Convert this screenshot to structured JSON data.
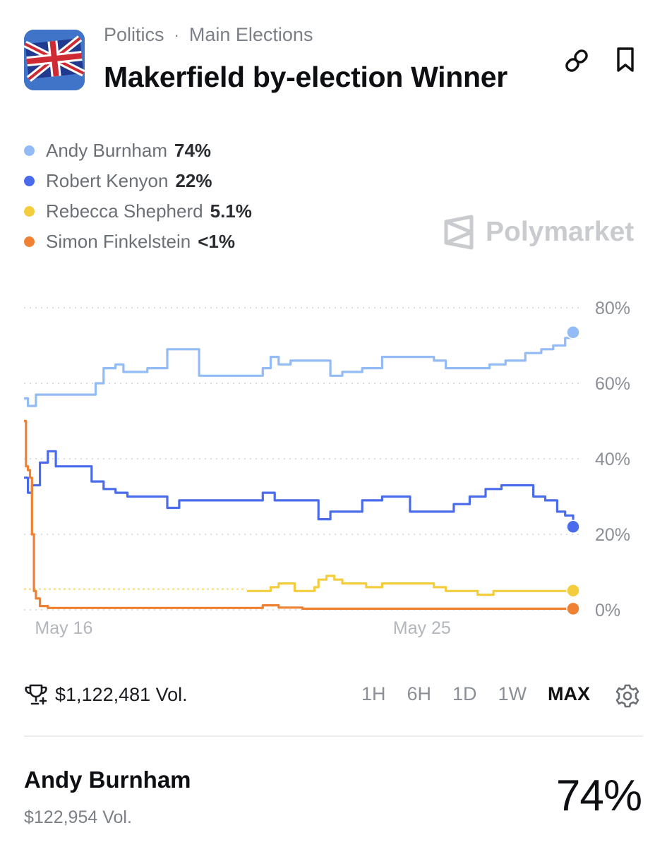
{
  "header": {
    "category": "Politics",
    "separator": "·",
    "subcategory": "Main Elections",
    "title": "Makerfield by-election Winner",
    "icons": {
      "flag": "uk-flag-icon",
      "link": "link-icon",
      "bookmark": "bookmark-icon"
    }
  },
  "legend": [
    {
      "name": "Andy Burnham",
      "pct": "74%",
      "color": "#93bbf6"
    },
    {
      "name": "Robert Kenyon",
      "pct": "22%",
      "color": "#4a6bec"
    },
    {
      "name": "Rebecca Shepherd",
      "pct": "5.1%",
      "color": "#f4cd3e"
    },
    {
      "name": "Simon Finkelstein",
      "pct": "<1%",
      "color": "#ee8132"
    }
  ],
  "watermark": "Polymarket",
  "chart_data": {
    "type": "line",
    "xlim": [
      15.0,
      28.8
    ],
    "ylim": [
      0,
      80
    ],
    "x_ticks": [
      {
        "x": 16,
        "label": "May 16"
      },
      {
        "x": 25,
        "label": "May 25"
      }
    ],
    "y_ticks": [
      {
        "y": 0,
        "label": "0%"
      },
      {
        "y": 20,
        "label": "20%"
      },
      {
        "y": 40,
        "label": "40%"
      },
      {
        "y": 60,
        "label": "60%"
      },
      {
        "y": 80,
        "label": "80%"
      }
    ],
    "grid": true,
    "series": [
      {
        "name": "Andy Burnham",
        "color": "#93bbf6",
        "points": [
          [
            15.0,
            56
          ],
          [
            15.1,
            54
          ],
          [
            15.3,
            57
          ],
          [
            15.5,
            57
          ],
          [
            15.8,
            57
          ],
          [
            16.2,
            57
          ],
          [
            16.6,
            57
          ],
          [
            16.8,
            60
          ],
          [
            17.0,
            64
          ],
          [
            17.3,
            65
          ],
          [
            17.5,
            63
          ],
          [
            17.8,
            63
          ],
          [
            18.1,
            64
          ],
          [
            18.5,
            64
          ],
          [
            18.6,
            69
          ],
          [
            19.0,
            69
          ],
          [
            19.2,
            69
          ],
          [
            19.4,
            62
          ],
          [
            19.7,
            62
          ],
          [
            20.0,
            62
          ],
          [
            20.3,
            62
          ],
          [
            20.7,
            62
          ],
          [
            21.0,
            64
          ],
          [
            21.2,
            67
          ],
          [
            21.4,
            65
          ],
          [
            21.7,
            66
          ],
          [
            22.0,
            66
          ],
          [
            22.5,
            66
          ],
          [
            22.7,
            62
          ],
          [
            23.0,
            63
          ],
          [
            23.2,
            63
          ],
          [
            23.5,
            64
          ],
          [
            24.0,
            67
          ],
          [
            24.4,
            67
          ],
          [
            25.0,
            67
          ],
          [
            25.3,
            66
          ],
          [
            25.6,
            64
          ],
          [
            26.0,
            64
          ],
          [
            26.4,
            64
          ],
          [
            26.7,
            65
          ],
          [
            27.1,
            66
          ],
          [
            27.3,
            66
          ],
          [
            27.6,
            68
          ],
          [
            28.0,
            69
          ],
          [
            28.3,
            70
          ],
          [
            28.6,
            72
          ],
          [
            28.8,
            73.5
          ]
        ]
      },
      {
        "name": "Robert Kenyon",
        "color": "#4a6bec",
        "points": [
          [
            15.0,
            35
          ],
          [
            15.1,
            31
          ],
          [
            15.2,
            33
          ],
          [
            15.4,
            39
          ],
          [
            15.6,
            42
          ],
          [
            15.8,
            38
          ],
          [
            16.0,
            38
          ],
          [
            16.4,
            38
          ],
          [
            16.7,
            34
          ],
          [
            17.0,
            32
          ],
          [
            17.3,
            31
          ],
          [
            17.6,
            30
          ],
          [
            18.0,
            30
          ],
          [
            18.5,
            30
          ],
          [
            18.6,
            27
          ],
          [
            18.9,
            29
          ],
          [
            19.2,
            29
          ],
          [
            19.6,
            29
          ],
          [
            20.0,
            29
          ],
          [
            20.5,
            29
          ],
          [
            20.8,
            29
          ],
          [
            21.0,
            31
          ],
          [
            21.3,
            29
          ],
          [
            21.7,
            29
          ],
          [
            22.0,
            29
          ],
          [
            22.3,
            29
          ],
          [
            22.4,
            24
          ],
          [
            22.7,
            26
          ],
          [
            23.0,
            26
          ],
          [
            23.2,
            26
          ],
          [
            23.5,
            29
          ],
          [
            24.0,
            30
          ],
          [
            24.3,
            30
          ],
          [
            24.7,
            26
          ],
          [
            25.0,
            26
          ],
          [
            25.4,
            26
          ],
          [
            25.8,
            28
          ],
          [
            26.2,
            30
          ],
          [
            26.6,
            32
          ],
          [
            27.0,
            33
          ],
          [
            27.4,
            33
          ],
          [
            27.8,
            30
          ],
          [
            28.1,
            29
          ],
          [
            28.4,
            26
          ],
          [
            28.6,
            25
          ],
          [
            28.8,
            22
          ]
        ]
      },
      {
        "name": "Rebecca Shepherd",
        "color": "#f4cd3e",
        "points": [
          [
            20.6,
            5
          ],
          [
            21.0,
            5
          ],
          [
            21.2,
            6
          ],
          [
            21.4,
            7
          ],
          [
            21.6,
            7
          ],
          [
            21.8,
            5
          ],
          [
            22.0,
            5
          ],
          [
            22.3,
            6
          ],
          [
            22.4,
            8
          ],
          [
            22.6,
            9
          ],
          [
            22.8,
            8
          ],
          [
            23.0,
            7
          ],
          [
            23.3,
            7
          ],
          [
            23.6,
            6
          ],
          [
            24.0,
            7
          ],
          [
            24.5,
            7
          ],
          [
            25.0,
            7
          ],
          [
            25.3,
            6
          ],
          [
            25.6,
            5
          ],
          [
            26.0,
            5
          ],
          [
            26.4,
            4
          ],
          [
            26.8,
            5
          ],
          [
            27.2,
            5
          ],
          [
            27.6,
            5
          ],
          [
            28.0,
            5
          ],
          [
            28.4,
            5
          ],
          [
            28.8,
            5.1
          ]
        ],
        "dotted_prefix": [
          [
            15.0,
            5.5
          ],
          [
            20.6,
            5.5
          ]
        ]
      },
      {
        "name": "Simon Finkelstein",
        "color": "#ee8132",
        "points": [
          [
            15.0,
            50
          ],
          [
            15.05,
            38
          ],
          [
            15.1,
            37
          ],
          [
            15.15,
            35
          ],
          [
            15.2,
            20
          ],
          [
            15.25,
            5
          ],
          [
            15.3,
            3
          ],
          [
            15.4,
            1
          ],
          [
            15.6,
            0.5
          ],
          [
            16.0,
            0.5
          ],
          [
            17.0,
            0.5
          ],
          [
            18.0,
            0.5
          ],
          [
            19.0,
            0.5
          ],
          [
            20.0,
            0.5
          ],
          [
            20.8,
            0.5
          ],
          [
            21.0,
            1.2
          ],
          [
            21.4,
            0.6
          ],
          [
            22.0,
            0.3
          ],
          [
            24.0,
            0.3
          ],
          [
            26.0,
            0.3
          ],
          [
            28.0,
            0.3
          ],
          [
            28.8,
            0.3
          ]
        ]
      }
    ]
  },
  "controls": {
    "volume_icon": "trophy-icon",
    "volume": "$1,122,481 Vol.",
    "ranges": [
      "1H",
      "6H",
      "1D",
      "1W",
      "MAX"
    ],
    "active_range": "MAX",
    "settings_icon": "gear-icon"
  },
  "outcome": {
    "name": "Andy Burnham",
    "volume": "$122,954 Vol.",
    "pct": "74%"
  }
}
